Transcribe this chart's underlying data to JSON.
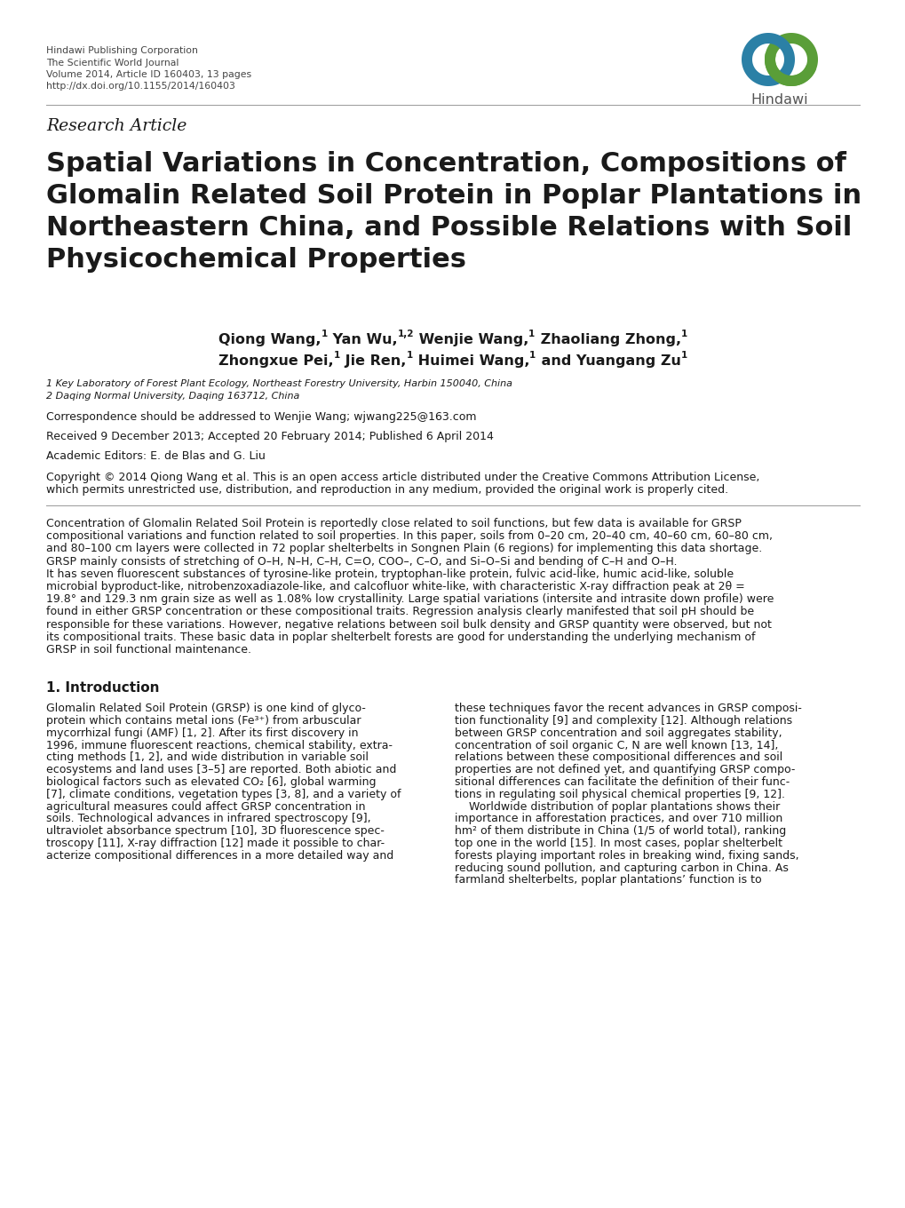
{
  "header_lines": [
    "Hindawi Publishing Corporation",
    "The Scientific World Journal",
    "Volume 2014, Article ID 160403, 13 pages",
    "http://dx.doi.org/10.1155/2014/160403"
  ],
  "research_article_label": "Research Article",
  "title_lines": [
    "Spatial Variations in Concentration, Compositions of",
    "Glomalin Related Soil Protein in Poplar Plantations in",
    "Northeastern China, and Possible Relations with Soil",
    "Physicochemical Properties"
  ],
  "author_line1_parts": [
    {
      "text": "Qiong Wang,",
      "bold": true,
      "sup": false
    },
    {
      "text": "1",
      "bold": true,
      "sup": true
    },
    {
      "text": " Yan Wu,",
      "bold": true,
      "sup": false
    },
    {
      "text": "1,2",
      "bold": true,
      "sup": true
    },
    {
      "text": " Wenjie Wang,",
      "bold": true,
      "sup": false
    },
    {
      "text": "1",
      "bold": true,
      "sup": true
    },
    {
      "text": " Zhaoliang Zhong,",
      "bold": true,
      "sup": false
    },
    {
      "text": "1",
      "bold": true,
      "sup": true
    }
  ],
  "author_line2_parts": [
    {
      "text": "Zhongxue Pei,",
      "bold": true,
      "sup": false
    },
    {
      "text": "1",
      "bold": true,
      "sup": true
    },
    {
      "text": " Jie Ren,",
      "bold": true,
      "sup": false
    },
    {
      "text": "1",
      "bold": true,
      "sup": true
    },
    {
      "text": " Huimei Wang,",
      "bold": true,
      "sup": false
    },
    {
      "text": "1",
      "bold": true,
      "sup": true
    },
    {
      "text": " and Yuangang Zu",
      "bold": true,
      "sup": false
    },
    {
      "text": "1",
      "bold": true,
      "sup": true
    }
  ],
  "affil1": "1 Key Laboratory of Forest Plant Ecology, Northeast Forestry University, Harbin 150040, China",
  "affil2": "2 Daqing Normal University, Daqing 163712, China",
  "correspondence": "Correspondence should be addressed to Wenjie Wang; wjwang225@163.com",
  "received": "Received 9 December 2013; Accepted 20 February 2014; Published 6 April 2014",
  "academic_editors": "Academic Editors: E. de Blas and G. Liu",
  "copyright_lines": [
    "Copyright © 2014 Qiong Wang et al. This is an open access article distributed under the Creative Commons Attribution License,",
    "which permits unrestricted use, distribution, and reproduction in any medium, provided the original work is properly cited."
  ],
  "abstract_lines": [
    "Concentration of Glomalin Related Soil Protein is reportedly close related to soil functions, but few data is available for GRSP",
    "compositional variations and function related to soil properties. In this paper, soils from 0–20 cm, 20–40 cm, 40–60 cm, 60–80 cm,",
    "and 80–100 cm layers were collected in 72 poplar shelterbelts in Songnen Plain (6 regions) for implementing this data shortage.",
    "GRSP mainly consists of stretching of O–H, N–H, C–H, C=O, COO–, C–O, and Si–O–Si and bending of C–H and O–H.",
    "It has seven fluorescent substances of tyrosine-like protein, tryptophan-like protein, fulvic acid-like, humic acid-like, soluble",
    "microbial byproduct-like, nitrobenzoxadiazole-like, and calcofluor white-like, with characteristic X-ray diffraction peak at 2θ =",
    "19.8° and 129.3 nm grain size as well as 1.08% low crystallinity. Large spatial variations (intersite and intrasite down profile) were",
    "found in either GRSP concentration or these compositional traits. Regression analysis clearly manifested that soil pH should be",
    "responsible for these variations. However, negative relations between soil bulk density and GRSP quantity were observed, but not",
    "its compositional traits. These basic data in poplar shelterbelt forests are good for understanding the underlying mechanism of",
    "GRSP in soil functional maintenance."
  ],
  "section1_title": "1. Introduction",
  "col1_lines": [
    "Glomalin Related Soil Protein (GRSP) is one kind of glyco-",
    "protein which contains metal ions (Fe³⁺) from arbuscular",
    "mycorrhizal fungi (AMF) [1, 2]. After its first discovery in",
    "1996, immune fluorescent reactions, chemical stability, extra-",
    "cting methods [1, 2], and wide distribution in variable soil",
    "ecosystems and land uses [3–5] are reported. Both abiotic and",
    "biological factors such as elevated CO₂ [6], global warming",
    "[7], climate conditions, vegetation types [3, 8], and a variety of",
    "agricultural measures could affect GRSP concentration in",
    "soils. Technological advances in infrared spectroscopy [9],",
    "ultraviolet absorbance spectrum [10], 3D fluorescence spec-",
    "troscopy [11], X-ray diffraction [12] made it possible to char-",
    "acterize compositional differences in a more detailed way and"
  ],
  "col2_lines": [
    "these techniques favor the recent advances in GRSP composi-",
    "tion functionality [9] and complexity [12]. Although relations",
    "between GRSP concentration and soil aggregates stability,",
    "concentration of soil organic C, N are well known [13, 14],",
    "relations between these compositional differences and soil",
    "properties are not defined yet, and quantifying GRSP compo-",
    "sitional differences can facilitate the definition of their func-",
    "tions in regulating soil physical chemical properties [9, 12].",
    "    Worldwide distribution of poplar plantations shows their",
    "importance in afforestation practices, and over 710 million",
    "hm² of them distribute in China (1/5 of world total), ranking",
    "top one in the world [15]. In most cases, poplar shelterbelt",
    "forests playing important roles in breaking wind, fixing sands,",
    "reducing sound pollution, and capturing carbon in China. As",
    "farmland shelterbelts, poplar plantations’ function is to"
  ],
  "bg_color": "#ffffff",
  "text_color": "#1a1a1a",
  "header_color": "#444444",
  "blue_ring": "#2b80a6",
  "green_ring": "#5a9e38"
}
